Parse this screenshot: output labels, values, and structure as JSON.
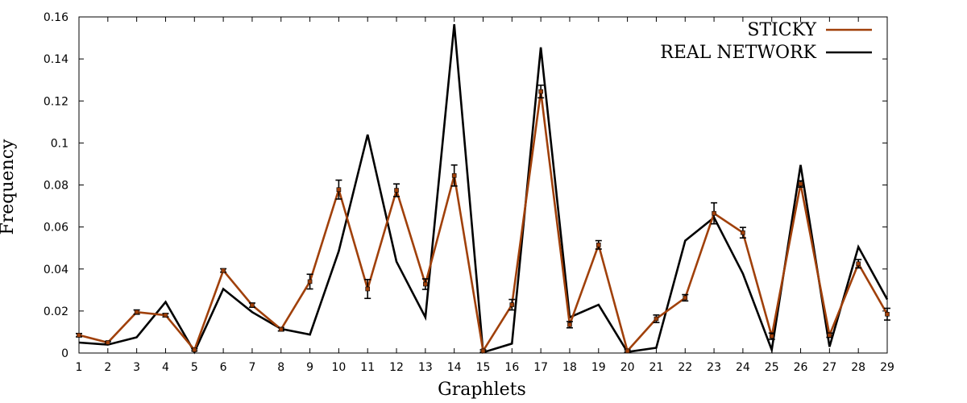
{
  "chart_data": {
    "type": "line",
    "xlabel": "Graphlets",
    "ylabel": "Frequency",
    "x": [
      1,
      2,
      3,
      4,
      5,
      6,
      7,
      8,
      9,
      10,
      11,
      12,
      13,
      14,
      15,
      16,
      17,
      18,
      19,
      20,
      21,
      22,
      23,
      24,
      25,
      26,
      27,
      28,
      29
    ],
    "xlim": [
      1,
      29
    ],
    "ylim": [
      0,
      0.16
    ],
    "yticks": [
      "0",
      "0.02",
      "0.04",
      "0.06",
      "0.08",
      "0.1",
      "0.12",
      "0.14",
      "0.16"
    ],
    "xticks": [
      "1",
      "2",
      "3",
      "4",
      "5",
      "6",
      "7",
      "8",
      "9",
      "10",
      "11",
      "12",
      "13",
      "14",
      "15",
      "16",
      "17",
      "18",
      "19",
      "20",
      "21",
      "22",
      "23",
      "24",
      "25",
      "26",
      "27",
      "28",
      "29"
    ],
    "grid": false,
    "legend_position": "top-right",
    "series": [
      {
        "name": "STICKY",
        "color": "#a0400a",
        "values": [
          0.0085,
          0.005,
          0.0195,
          0.018,
          0.0015,
          0.0393,
          0.0228,
          0.0113,
          0.034,
          0.0778,
          0.0305,
          0.0775,
          0.0328,
          0.0845,
          0.001,
          0.023,
          0.1245,
          0.0135,
          0.0515,
          0.001,
          0.0163,
          0.0263,
          0.0665,
          0.0573,
          0.008,
          0.0805,
          0.0085,
          0.0425,
          0.0185
        ],
        "error": [
          0.0008,
          0.0005,
          0.001,
          0.0008,
          0.0005,
          0.0008,
          0.001,
          0.0008,
          0.0035,
          0.0045,
          0.0045,
          0.003,
          0.0025,
          0.005,
          0.0005,
          0.0025,
          0.003,
          0.0015,
          0.002,
          0.0005,
          0.0018,
          0.0015,
          0.005,
          0.0025,
          0.0015,
          0.0015,
          0.001,
          0.002,
          0.0028
        ]
      },
      {
        "name": "REAL NETWORK",
        "color": "#000000",
        "values": [
          0.005,
          0.004,
          0.0075,
          0.0243,
          0.0005,
          0.0305,
          0.0195,
          0.0115,
          0.0088,
          0.0485,
          0.104,
          0.0435,
          0.017,
          0.1565,
          0.0003,
          0.0045,
          0.1455,
          0.017,
          0.023,
          0.0005,
          0.0025,
          0.0535,
          0.0645,
          0.0378,
          0.0015,
          0.0895,
          0.003,
          0.0505,
          0.0255
        ]
      }
    ]
  }
}
